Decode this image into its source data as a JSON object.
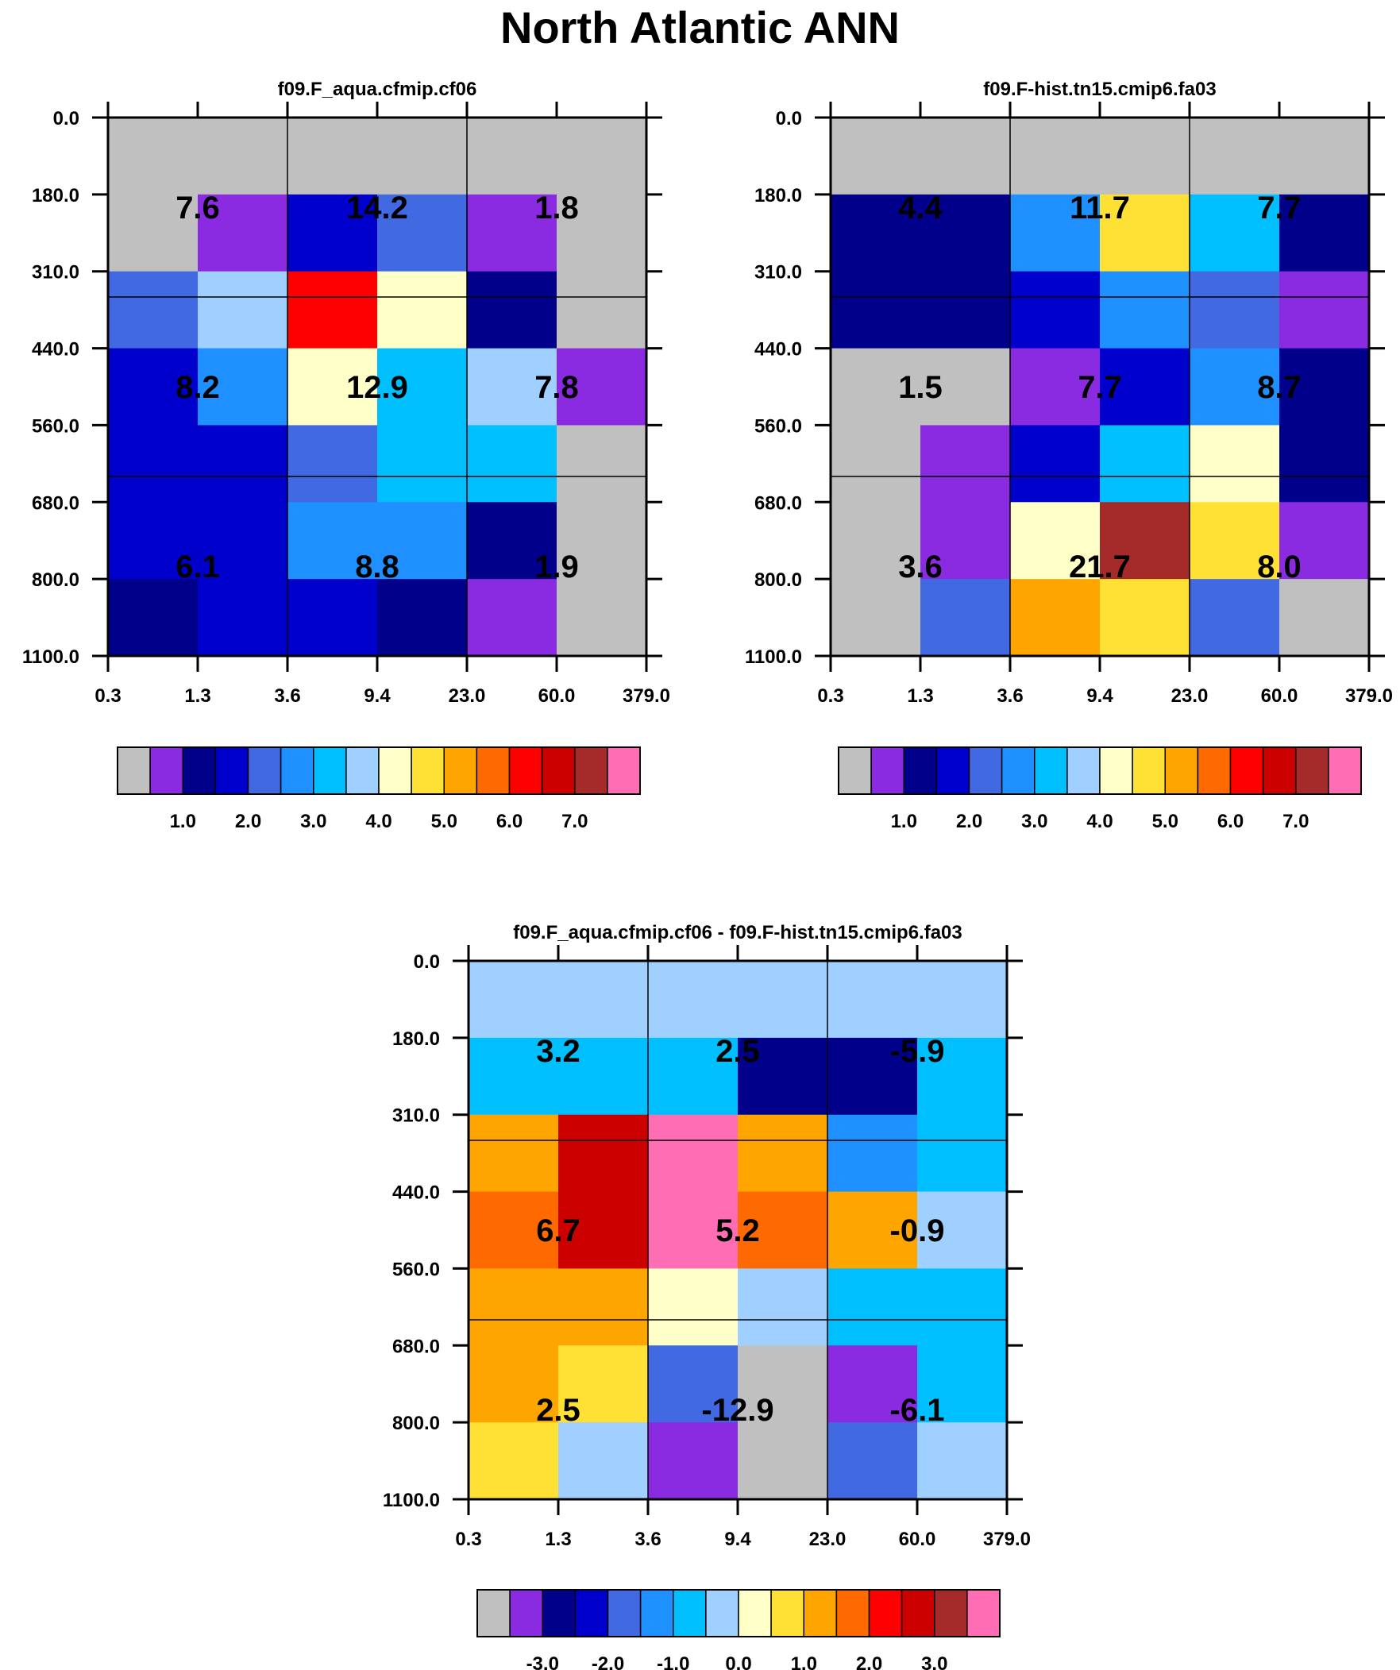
{
  "figure_title": "North Atlantic ANN",
  "colors": {
    "scale": [
      "#c0c0c0",
      "#8a2be2",
      "#00008b",
      "#0000cd",
      "#4169e1",
      "#1e90ff",
      "#00bfff",
      "#a0d0ff",
      "#ffffc8",
      "#ffe135",
      "#ffa500",
      "#ff6a00",
      "#ff0000",
      "#cd0000",
      "#a52a2a",
      "#ff6eb4"
    ],
    "frame": "#000000"
  },
  "chart_data": [
    {
      "type": "heatmap",
      "id": "p1",
      "title": "f09.F_aqua.cfmip.cf06",
      "x_ticks": [
        "0.3",
        "1.3",
        "3.6",
        "9.4",
        "23.0",
        "60.0",
        "379.0"
      ],
      "y_ticks": [
        "0.0",
        "180.0",
        "310.0",
        "440.0",
        "560.0",
        "680.0",
        "800.0",
        "1100.0"
      ],
      "color_index": [
        [
          0,
          0,
          0,
          0,
          0,
          0
        ],
        [
          0,
          1,
          3,
          4,
          1,
          0
        ],
        [
          4,
          7,
          12,
          8,
          2,
          0
        ],
        [
          3,
          5,
          8,
          6,
          7,
          1
        ],
        [
          3,
          3,
          4,
          6,
          6,
          0
        ],
        [
          3,
          3,
          5,
          5,
          2,
          0
        ],
        [
          2,
          3,
          3,
          2,
          1,
          0
        ]
      ],
      "cell_labels": [
        {
          "row": 0,
          "col": 0,
          "value": "7.6"
        },
        {
          "row": 0,
          "col": 1,
          "value": "14.2"
        },
        {
          "row": 0,
          "col": 2,
          "value": "1.8"
        },
        {
          "row": 1,
          "col": 0,
          "value": "8.2"
        },
        {
          "row": 1,
          "col": 1,
          "value": "12.9"
        },
        {
          "row": 1,
          "col": 2,
          "value": "7.8"
        },
        {
          "row": 2,
          "col": 0,
          "value": "6.1"
        },
        {
          "row": 2,
          "col": 1,
          "value": "8.8"
        },
        {
          "row": 2,
          "col": 2,
          "value": "1.9"
        }
      ],
      "colorbar_labels": [
        "1.0",
        "2.0",
        "3.0",
        "4.0",
        "5.0",
        "6.0",
        "7.0"
      ]
    },
    {
      "type": "heatmap",
      "id": "p2",
      "title": "f09.F-hist.tn15.cmip6.fa03",
      "x_ticks": [
        "0.3",
        "1.3",
        "3.6",
        "9.4",
        "23.0",
        "60.0",
        "379.0"
      ],
      "y_ticks": [
        "0.0",
        "180.0",
        "310.0",
        "440.0",
        "560.0",
        "680.0",
        "800.0",
        "1100.0"
      ],
      "color_index": [
        [
          0,
          0,
          0,
          0,
          0,
          0
        ],
        [
          2,
          2,
          5,
          9,
          6,
          2
        ],
        [
          2,
          2,
          3,
          5,
          4,
          1
        ],
        [
          0,
          0,
          1,
          3,
          5,
          2
        ],
        [
          0,
          1,
          3,
          6,
          8,
          2
        ],
        [
          0,
          1,
          8,
          14,
          9,
          1
        ],
        [
          0,
          4,
          10,
          9,
          4,
          0
        ]
      ],
      "cell_labels": [
        {
          "row": 0,
          "col": 0,
          "value": "4.4"
        },
        {
          "row": 0,
          "col": 1,
          "value": "11.7"
        },
        {
          "row": 0,
          "col": 2,
          "value": "7.7"
        },
        {
          "row": 1,
          "col": 0,
          "value": "1.5"
        },
        {
          "row": 1,
          "col": 1,
          "value": "7.7"
        },
        {
          "row": 1,
          "col": 2,
          "value": "8.7"
        },
        {
          "row": 2,
          "col": 0,
          "value": "3.6"
        },
        {
          "row": 2,
          "col": 1,
          "value": "21.7"
        },
        {
          "row": 2,
          "col": 2,
          "value": "8.0"
        }
      ],
      "colorbar_labels": [
        "1.0",
        "2.0",
        "3.0",
        "4.0",
        "5.0",
        "6.0",
        "7.0"
      ]
    },
    {
      "type": "heatmap",
      "id": "p3",
      "title": "f09.F_aqua.cfmip.cf06 - f09.F-hist.tn15.cmip6.fa03",
      "x_ticks": [
        "0.3",
        "1.3",
        "3.6",
        "9.4",
        "23.0",
        "60.0",
        "379.0"
      ],
      "y_ticks": [
        "0.0",
        "180.0",
        "310.0",
        "440.0",
        "560.0",
        "680.0",
        "800.0",
        "1100.0"
      ],
      "color_index": [
        [
          7,
          7,
          7,
          7,
          7,
          7
        ],
        [
          6,
          6,
          6,
          2,
          2,
          6
        ],
        [
          10,
          13,
          15,
          10,
          5,
          6
        ],
        [
          11,
          13,
          15,
          11,
          10,
          7
        ],
        [
          10,
          10,
          8,
          7,
          6,
          6
        ],
        [
          10,
          9,
          4,
          0,
          1,
          6
        ],
        [
          9,
          7,
          1,
          0,
          4,
          7
        ]
      ],
      "cell_labels": [
        {
          "row": 0,
          "col": 0,
          "value": "3.2"
        },
        {
          "row": 0,
          "col": 1,
          "value": "2.5"
        },
        {
          "row": 0,
          "col": 2,
          "value": "-5.9"
        },
        {
          "row": 1,
          "col": 0,
          "value": "6.7"
        },
        {
          "row": 1,
          "col": 1,
          "value": "5.2"
        },
        {
          "row": 1,
          "col": 2,
          "value": "-0.9"
        },
        {
          "row": 2,
          "col": 0,
          "value": "2.5"
        },
        {
          "row": 2,
          "col": 1,
          "value": "-12.9"
        },
        {
          "row": 2,
          "col": 2,
          "value": "-6.1"
        }
      ],
      "colorbar_labels": [
        "-3.0",
        "-2.0",
        "-1.0",
        "0.0",
        "1.0",
        "2.0",
        "3.0"
      ]
    }
  ]
}
